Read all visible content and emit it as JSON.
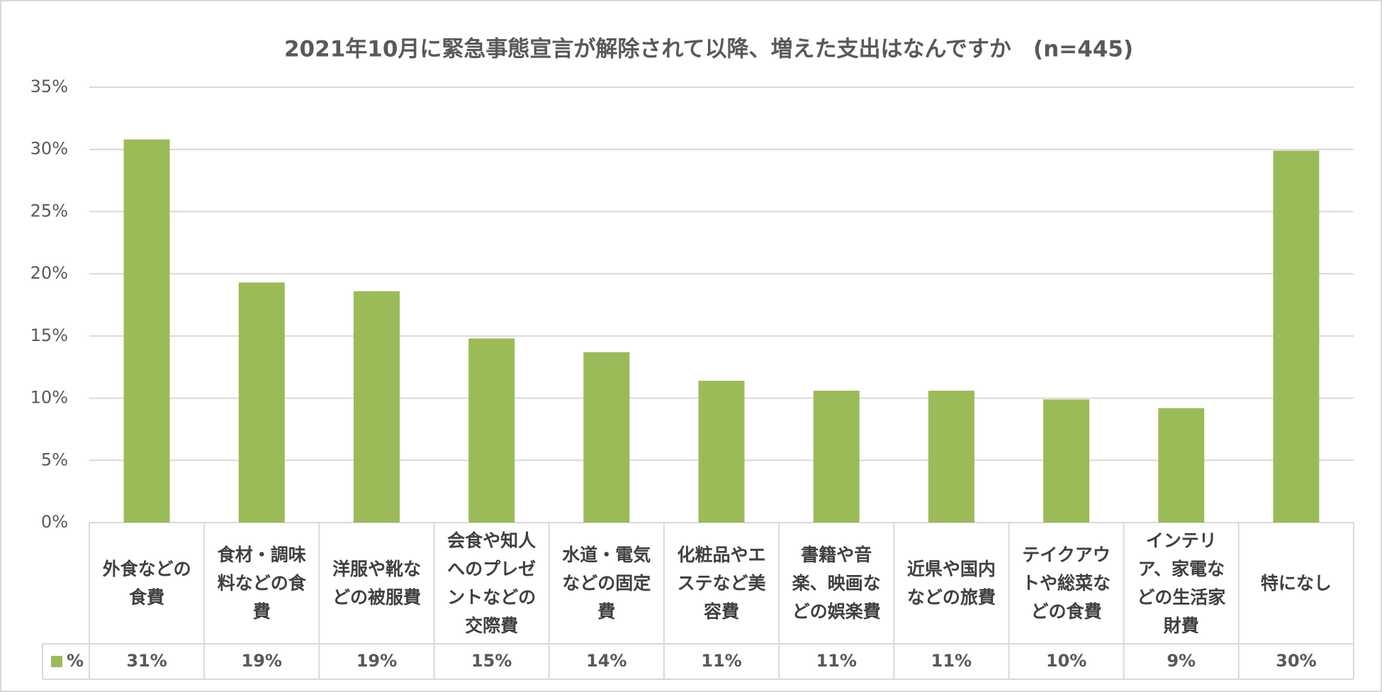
{
  "chart_data": {
    "type": "bar",
    "title": "2021年10月に緊急事態宣言が解除されて以降、増えた支出はなんですか　(n=445)",
    "categories": [
      "外食などの食費",
      "食材・調味料などの食費",
      "洋服や靴などの被服費",
      "会食や知人へのプレゼントなどの交際費",
      "水道・電気などの固定費",
      "化粧品やエステなど美容費",
      "書籍や音楽、映画などの娯楽費",
      "近県や国内などの旅費",
      "テイクアウトや総菜などの食費",
      "インテリア、家電などの生活家財費",
      "特になし"
    ],
    "series": [
      {
        "name": "%",
        "color": "#9bbb59",
        "values": [
          30.8,
          19.3,
          18.6,
          14.8,
          13.7,
          11.4,
          10.6,
          10.6,
          9.9,
          9.2,
          29.9
        ],
        "value_labels": [
          "31%",
          "19%",
          "19%",
          "15%",
          "14%",
          "11%",
          "11%",
          "11%",
          "10%",
          "9%",
          "30%"
        ]
      }
    ],
    "ylim": [
      0,
      35
    ],
    "yticks": [
      {
        "value": 0,
        "label": "0%"
      },
      {
        "value": 5,
        "label": "5%"
      },
      {
        "value": 10,
        "label": "10%"
      },
      {
        "value": 15,
        "label": "15%"
      },
      {
        "value": 20,
        "label": "20%"
      },
      {
        "value": 25,
        "label": "25%"
      },
      {
        "value": 30,
        "label": "30%"
      },
      {
        "value": 35,
        "label": "35%"
      }
    ],
    "grid": true
  }
}
